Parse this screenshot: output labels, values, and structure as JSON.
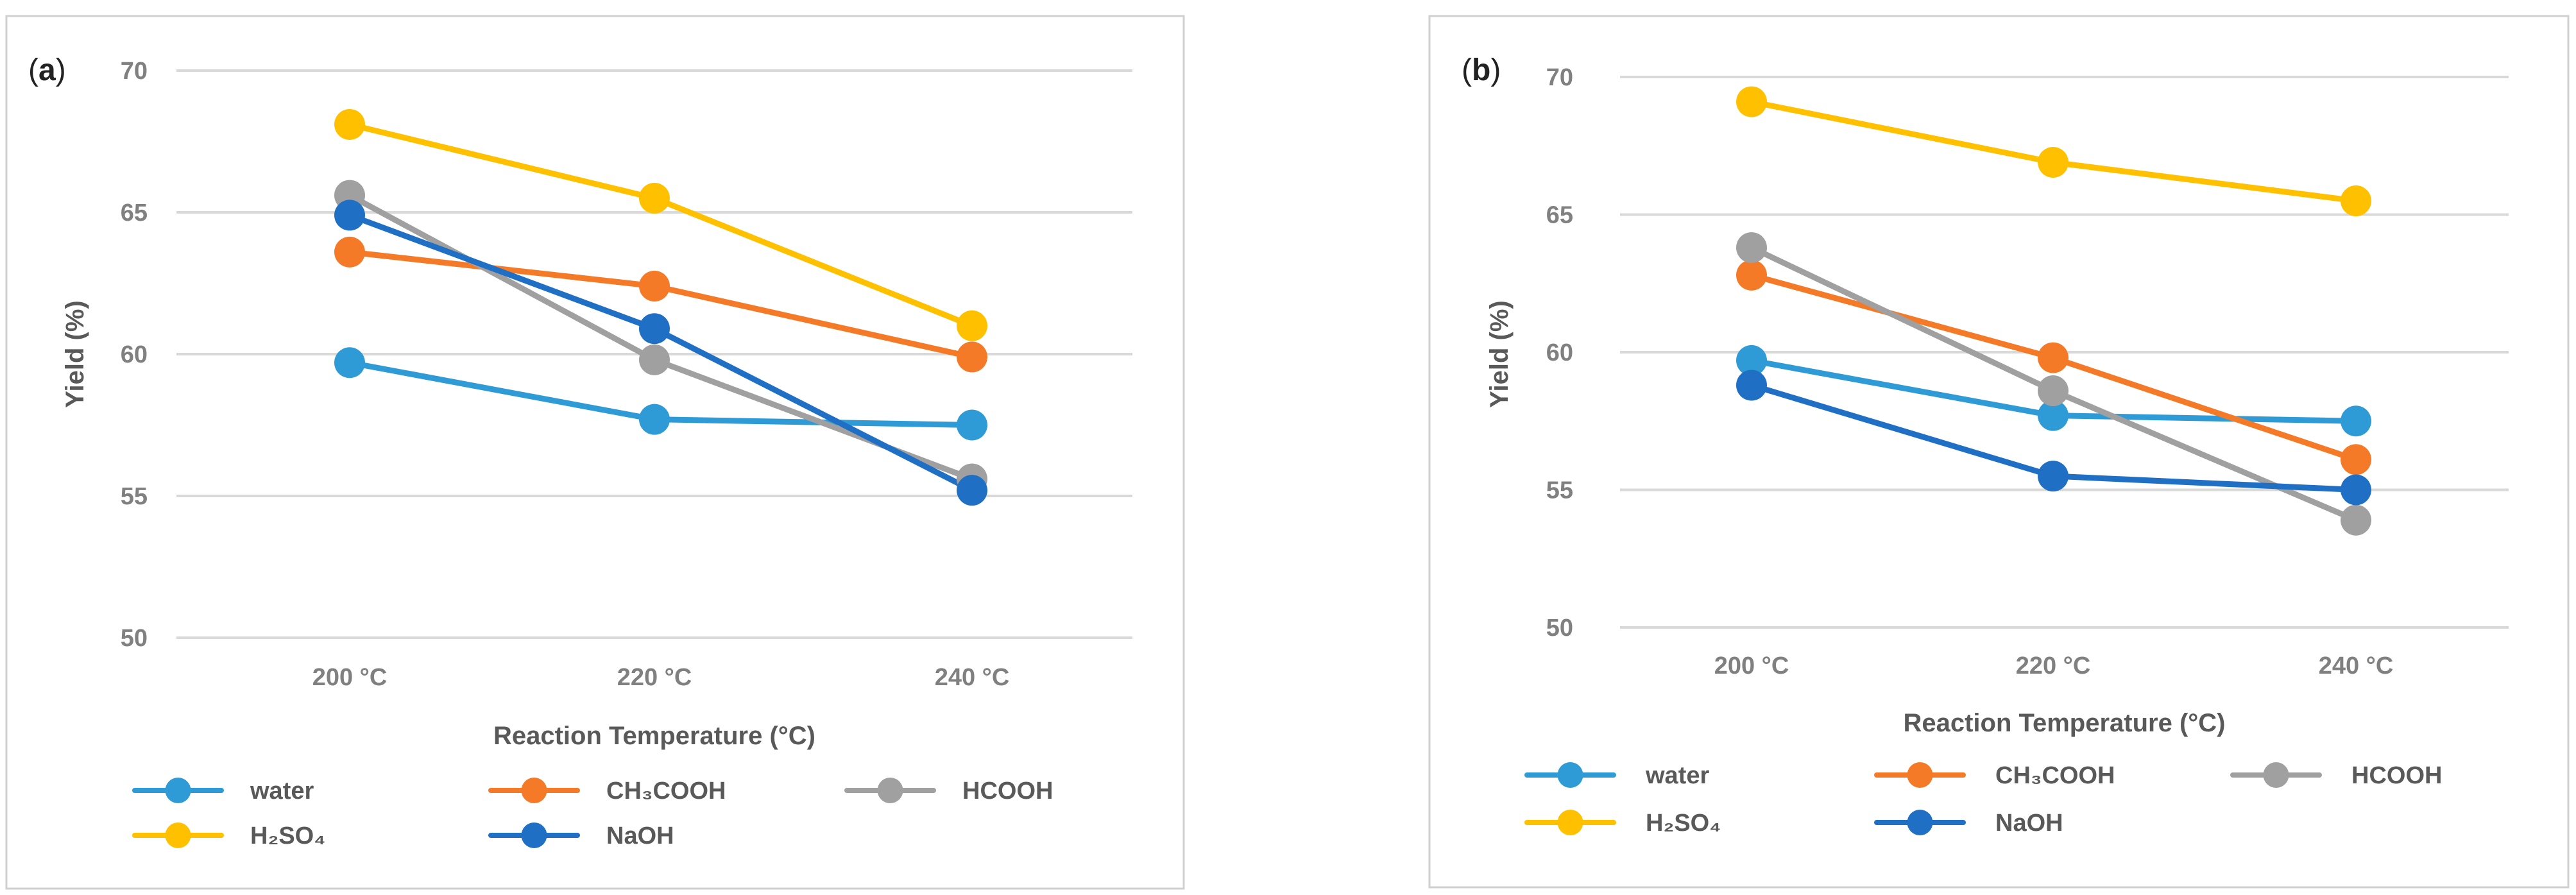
{
  "chart_data": [
    {
      "type": "line",
      "panel_label": "a",
      "categories": [
        "200 °C",
        "220 °C",
        "240 °C"
      ],
      "series": [
        {
          "name": "water",
          "legend_label": "water",
          "color": "#2E9BD6",
          "values": [
            59.7,
            57.7,
            57.5
          ]
        },
        {
          "name": "CH3COOH",
          "legend_label": "CH₃COOH",
          "color": "#F47A28",
          "values": [
            63.6,
            62.4,
            59.9
          ]
        },
        {
          "name": "HCOOH",
          "legend_label": "HCOOH",
          "color": "#A0A0A0",
          "values": [
            65.6,
            59.8,
            55.6
          ]
        },
        {
          "name": "H2SO4",
          "legend_label": "H₂SO₄",
          "color": "#FFC000",
          "values": [
            68.1,
            65.5,
            61.0
          ]
        },
        {
          "name": "NaOH",
          "legend_label": "NaOH",
          "color": "#1F6FC5",
          "values": [
            64.9,
            60.9,
            55.2
          ]
        }
      ],
      "ylabel": "Yield (%)",
      "xlabel": "Reaction Temperature (°C)",
      "ylim": [
        50,
        70
      ],
      "yticks": [
        "50",
        "55",
        "60",
        "65",
        "70"
      ],
      "grid": true,
      "legend_position": "bottom"
    },
    {
      "type": "line",
      "panel_label": "b",
      "categories": [
        "200 °C",
        "220 °C",
        "240 °C"
      ],
      "series": [
        {
          "name": "water",
          "legend_label": "water",
          "color": "#2E9BD6",
          "values": [
            59.7,
            57.7,
            57.5
          ]
        },
        {
          "name": "CH3COOH",
          "legend_label": "CH₃COOH",
          "color": "#F47A28",
          "values": [
            62.8,
            59.8,
            56.1
          ]
        },
        {
          "name": "HCOOH",
          "legend_label": "HCOOH",
          "color": "#A0A0A0",
          "values": [
            63.8,
            58.6,
            53.9
          ]
        },
        {
          "name": "H2SO4",
          "legend_label": "H₂SO₄",
          "color": "#FFC000",
          "values": [
            69.1,
            66.9,
            65.5
          ]
        },
        {
          "name": "NaOH",
          "legend_label": "NaOH",
          "color": "#1F6FC5",
          "values": [
            58.8,
            55.5,
            55.0
          ]
        }
      ],
      "ylabel": "Yield (%)",
      "xlabel": "Reaction Temperature (°C)",
      "ylim": [
        50,
        70
      ],
      "yticks": [
        "50",
        "55",
        "60",
        "65",
        "70"
      ],
      "grid": true,
      "legend_position": "bottom"
    }
  ]
}
